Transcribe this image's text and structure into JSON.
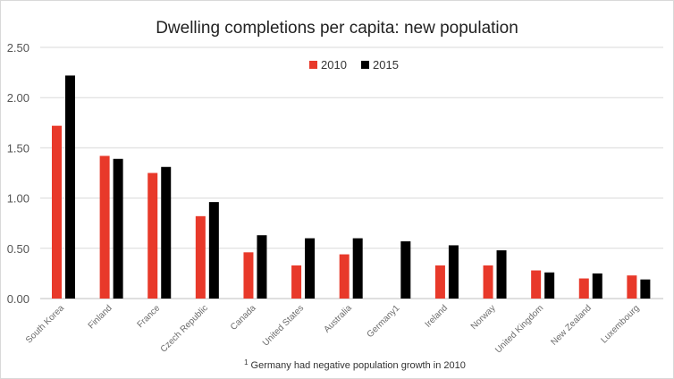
{
  "chart_data": {
    "type": "bar",
    "title": "Dwelling completions per capita: new population",
    "xlabel": "",
    "ylabel": "",
    "categories": [
      "South Korea",
      "Finland",
      "France",
      "Czech Republic",
      "Canada",
      "United States",
      "Australia",
      "Germany1",
      "Ireland",
      "Norway",
      "United Kingdom",
      "New Zealand",
      "Luxembourg"
    ],
    "series": [
      {
        "name": "2010",
        "color": "#e8392a",
        "values": [
          1.72,
          1.42,
          1.25,
          0.82,
          0.46,
          0.33,
          0.44,
          null,
          0.33,
          0.33,
          0.28,
          0.2,
          0.23
        ]
      },
      {
        "name": "2015",
        "color": "#000000",
        "values": [
          2.22,
          1.39,
          1.31,
          0.96,
          0.63,
          0.6,
          0.6,
          0.57,
          0.53,
          0.48,
          0.26,
          0.25,
          0.19
        ]
      }
    ],
    "ylim": [
      0,
      2.5
    ],
    "yticks": [
      "0.00",
      "0.50",
      "1.00",
      "1.50",
      "2.00",
      "2.50"
    ],
    "grid": true,
    "legend_position": "top-center",
    "footnote_marker": "1",
    "footnote": "Germany had negative population growth in 2010"
  }
}
